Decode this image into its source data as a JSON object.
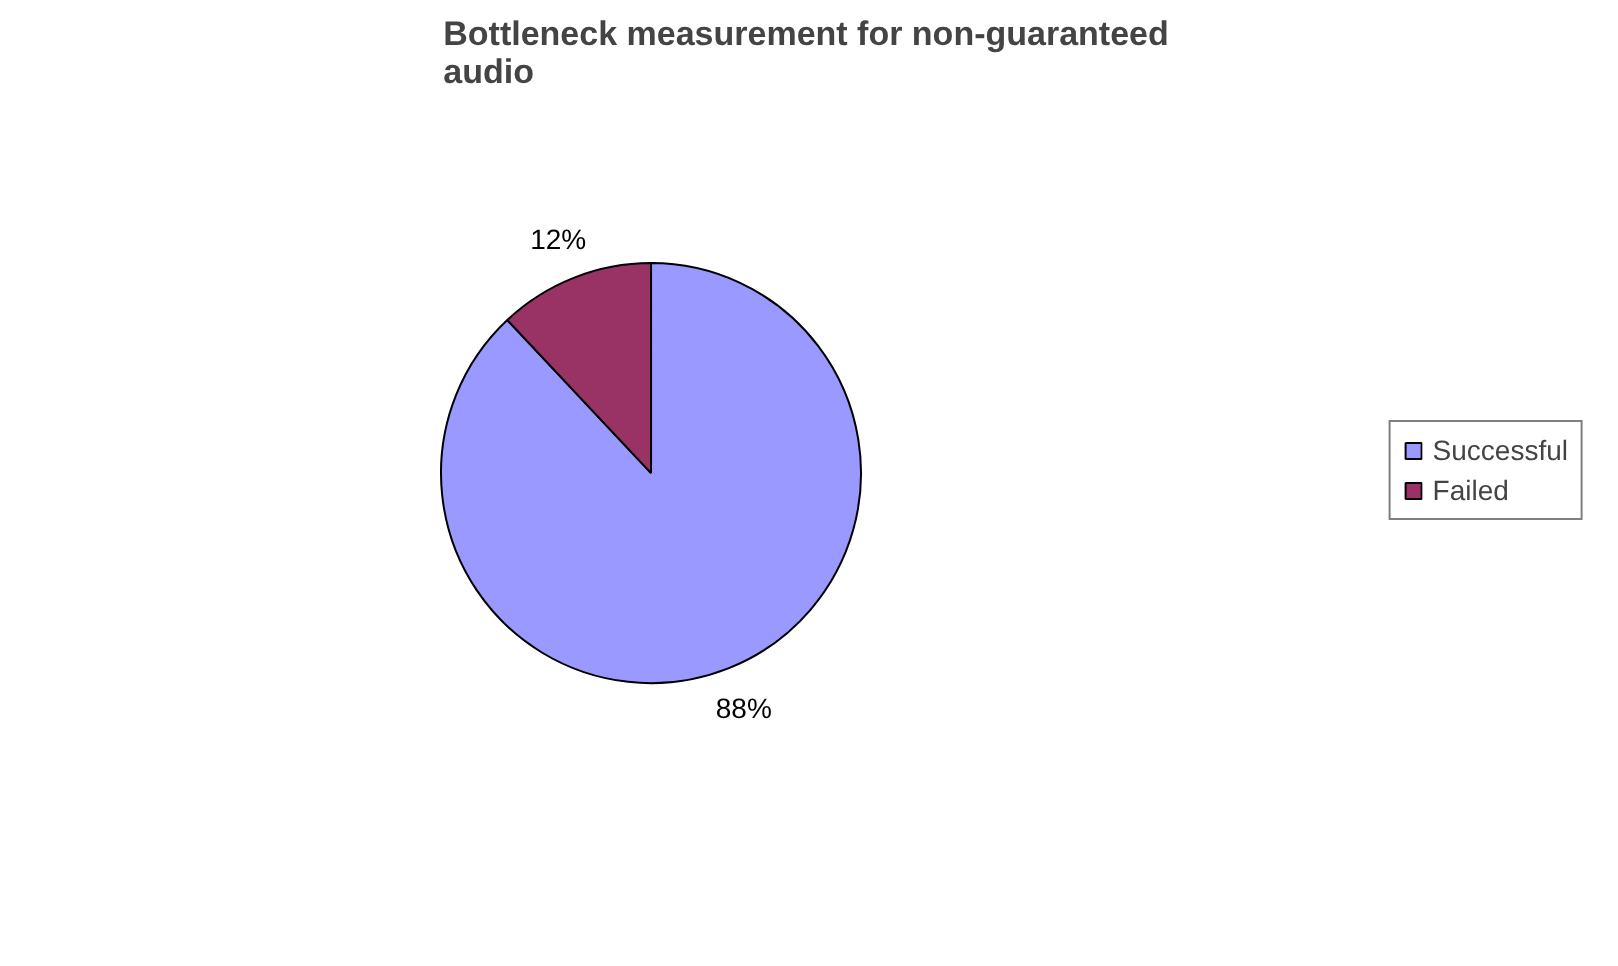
{
  "chart_data": {
    "type": "pie",
    "title": "Bottleneck measurement for non-guaranteed\naudio",
    "categories": [
      "Successful",
      "Failed"
    ],
    "values": [
      88,
      12
    ],
    "colors": [
      "#9999ff",
      "#993366"
    ],
    "value_labels": [
      "88%",
      "12%"
    ],
    "legend": "right"
  }
}
